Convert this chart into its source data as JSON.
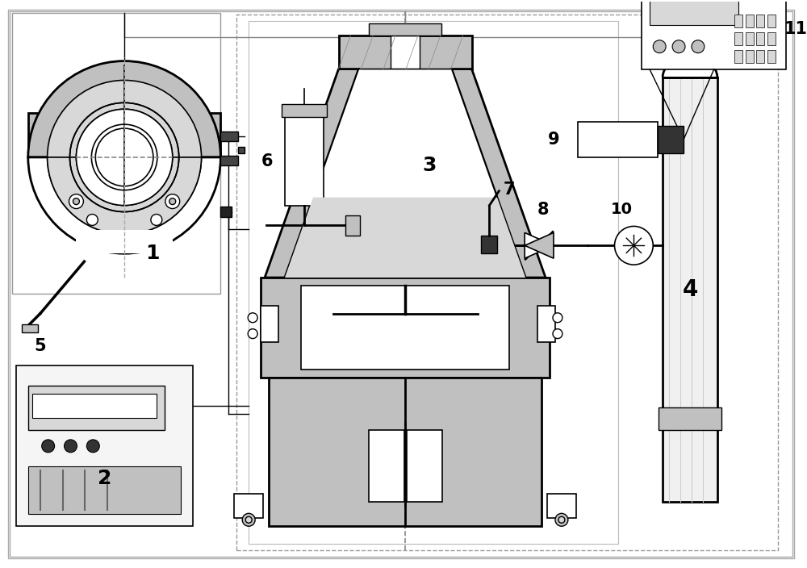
{
  "bg": "#ffffff",
  "lc": "#000000",
  "gray1": "#c0c0c0",
  "gray2": "#d8d8d8",
  "gray3": "#e8e8e8",
  "dark": "#444444"
}
